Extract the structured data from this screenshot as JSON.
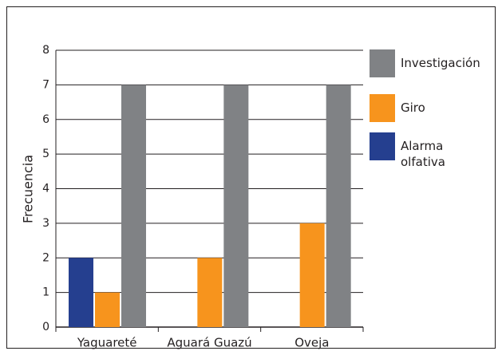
{
  "chart_data": {
    "type": "bar",
    "y_label": "Frecuencia",
    "categories": [
      "Yaguareté",
      "Aguará Guazú",
      "Oveja"
    ],
    "series": [
      {
        "name": "Alarma olfativa",
        "color": "#253f8f",
        "values": [
          2,
          0,
          0
        ]
      },
      {
        "name": "Giro",
        "color": "#f7941d",
        "values": [
          1,
          2,
          3
        ]
      },
      {
        "name": "Investigación",
        "color": "#808285",
        "values": [
          7,
          7,
          7
        ]
      }
    ],
    "ylim": [
      0,
      8
    ],
    "yticks": [
      0,
      1,
      2,
      3,
      4,
      5,
      6,
      7,
      8
    ],
    "grid": true
  }
}
